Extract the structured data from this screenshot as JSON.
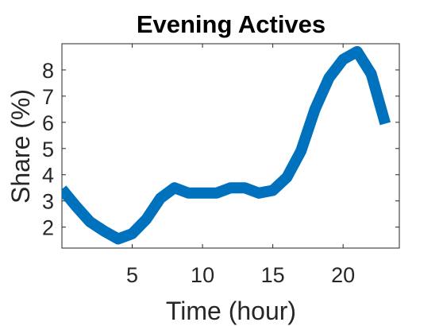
{
  "chart_data": {
    "type": "line",
    "title": "Evening Actives",
    "xlabel": "Time (hour)",
    "ylabel": "Share (%)",
    "xlim": [
      0,
      24
    ],
    "ylim": [
      1.2,
      9.0
    ],
    "xticks": [
      5,
      10,
      15,
      20
    ],
    "yticks": [
      2,
      3,
      4,
      5,
      6,
      7,
      8
    ],
    "grid": false,
    "series": [
      {
        "color": "#0072BD",
        "x": [
          0,
          1,
          2,
          3,
          4,
          5,
          6,
          7,
          8,
          9,
          10,
          11,
          12,
          13,
          14,
          15,
          16,
          17,
          18,
          19,
          20,
          21,
          22,
          23
        ],
        "y": [
          3.45,
          2.8,
          2.2,
          1.85,
          1.55,
          1.75,
          2.3,
          3.1,
          3.5,
          3.3,
          3.3,
          3.3,
          3.5,
          3.5,
          3.3,
          3.4,
          3.9,
          4.9,
          6.5,
          7.7,
          8.4,
          8.7,
          7.85,
          5.95
        ]
      }
    ]
  }
}
